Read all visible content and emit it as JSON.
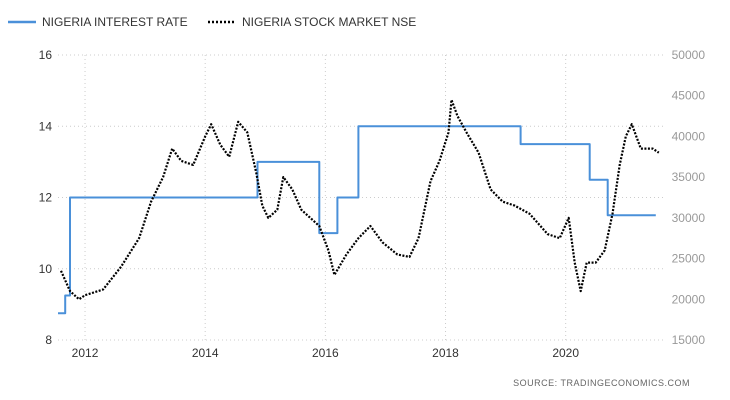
{
  "chart_data": {
    "type": "line",
    "title": "",
    "xlabel": "",
    "ylabel_left": "",
    "ylabel_right": "",
    "x_ticks": [
      "2012",
      "2014",
      "2016",
      "2018",
      "2020"
    ],
    "x_range": [
      2011.55,
      2021.62
    ],
    "y_left_range": [
      8,
      16
    ],
    "y_left_ticks": [
      "8",
      "10",
      "12",
      "14",
      "16"
    ],
    "y_right_range": [
      15000,
      50000
    ],
    "y_right_ticks": [
      "15000",
      "20000",
      "25000",
      "30000",
      "35000",
      "40000",
      "45000",
      "50000"
    ],
    "grid": "dotted",
    "legend": "top-left",
    "colors": {
      "interest": "#4a90d9",
      "nse": "#000000",
      "grid": "#cccccc"
    },
    "series": [
      {
        "name": "NIGERIA INTEREST RATE",
        "axis": "left",
        "style": "solid",
        "points": [
          [
            2011.55,
            8.75
          ],
          [
            2011.67,
            8.75
          ],
          [
            2011.67,
            9.25
          ],
          [
            2011.75,
            9.25
          ],
          [
            2011.75,
            12.0
          ],
          [
            2014.87,
            12.0
          ],
          [
            2014.87,
            13.0
          ],
          [
            2015.9,
            13.0
          ],
          [
            2015.9,
            11.0
          ],
          [
            2016.2,
            11.0
          ],
          [
            2016.2,
            12.0
          ],
          [
            2016.55,
            12.0
          ],
          [
            2016.55,
            14.0
          ],
          [
            2019.25,
            14.0
          ],
          [
            2019.25,
            13.5
          ],
          [
            2020.4,
            13.5
          ],
          [
            2020.4,
            12.5
          ],
          [
            2020.7,
            12.5
          ],
          [
            2020.7,
            11.5
          ],
          [
            2021.5,
            11.5
          ]
        ]
      },
      {
        "name": "NIGERIA STOCK MARKET NSE",
        "axis": "right",
        "style": "dotted",
        "points": [
          [
            2011.6,
            23500
          ],
          [
            2011.75,
            21000
          ],
          [
            2011.9,
            20000
          ],
          [
            2012.0,
            20500
          ],
          [
            2012.3,
            21200
          ],
          [
            2012.6,
            24000
          ],
          [
            2012.9,
            27500
          ],
          [
            2013.1,
            32000
          ],
          [
            2013.3,
            35000
          ],
          [
            2013.45,
            38500
          ],
          [
            2013.6,
            37000
          ],
          [
            2013.8,
            36500
          ],
          [
            2014.0,
            40000
          ],
          [
            2014.1,
            41500
          ],
          [
            2014.25,
            39000
          ],
          [
            2014.4,
            37500
          ],
          [
            2014.55,
            41800
          ],
          [
            2014.7,
            40500
          ],
          [
            2014.85,
            35500
          ],
          [
            2014.95,
            31500
          ],
          [
            2015.05,
            30000
          ],
          [
            2015.2,
            31000
          ],
          [
            2015.3,
            35000
          ],
          [
            2015.45,
            33500
          ],
          [
            2015.6,
            31000
          ],
          [
            2015.75,
            30000
          ],
          [
            2015.9,
            29000
          ],
          [
            2016.05,
            26000
          ],
          [
            2016.15,
            23000
          ],
          [
            2016.35,
            25500
          ],
          [
            2016.55,
            27500
          ],
          [
            2016.75,
            29000
          ],
          [
            2016.95,
            27000
          ],
          [
            2017.2,
            25500
          ],
          [
            2017.4,
            25200
          ],
          [
            2017.55,
            27500
          ],
          [
            2017.75,
            34500
          ],
          [
            2017.9,
            37000
          ],
          [
            2018.05,
            40500
          ],
          [
            2018.1,
            44500
          ],
          [
            2018.2,
            42500
          ],
          [
            2018.35,
            40500
          ],
          [
            2018.55,
            38000
          ],
          [
            2018.75,
            33500
          ],
          [
            2018.95,
            32000
          ],
          [
            2019.15,
            31500
          ],
          [
            2019.4,
            30500
          ],
          [
            2019.7,
            28000
          ],
          [
            2019.9,
            27500
          ],
          [
            2020.05,
            30000
          ],
          [
            2020.15,
            24500
          ],
          [
            2020.25,
            21000
          ],
          [
            2020.35,
            24500
          ],
          [
            2020.5,
            24500
          ],
          [
            2020.65,
            26000
          ],
          [
            2020.78,
            30500
          ],
          [
            2020.9,
            36500
          ],
          [
            2021.0,
            40000
          ],
          [
            2021.1,
            41500
          ],
          [
            2021.25,
            38500
          ],
          [
            2021.45,
            38500
          ],
          [
            2021.55,
            38000
          ]
        ]
      }
    ],
    "source": "SOURCE:  TRADINGECONOMICS.COM"
  }
}
